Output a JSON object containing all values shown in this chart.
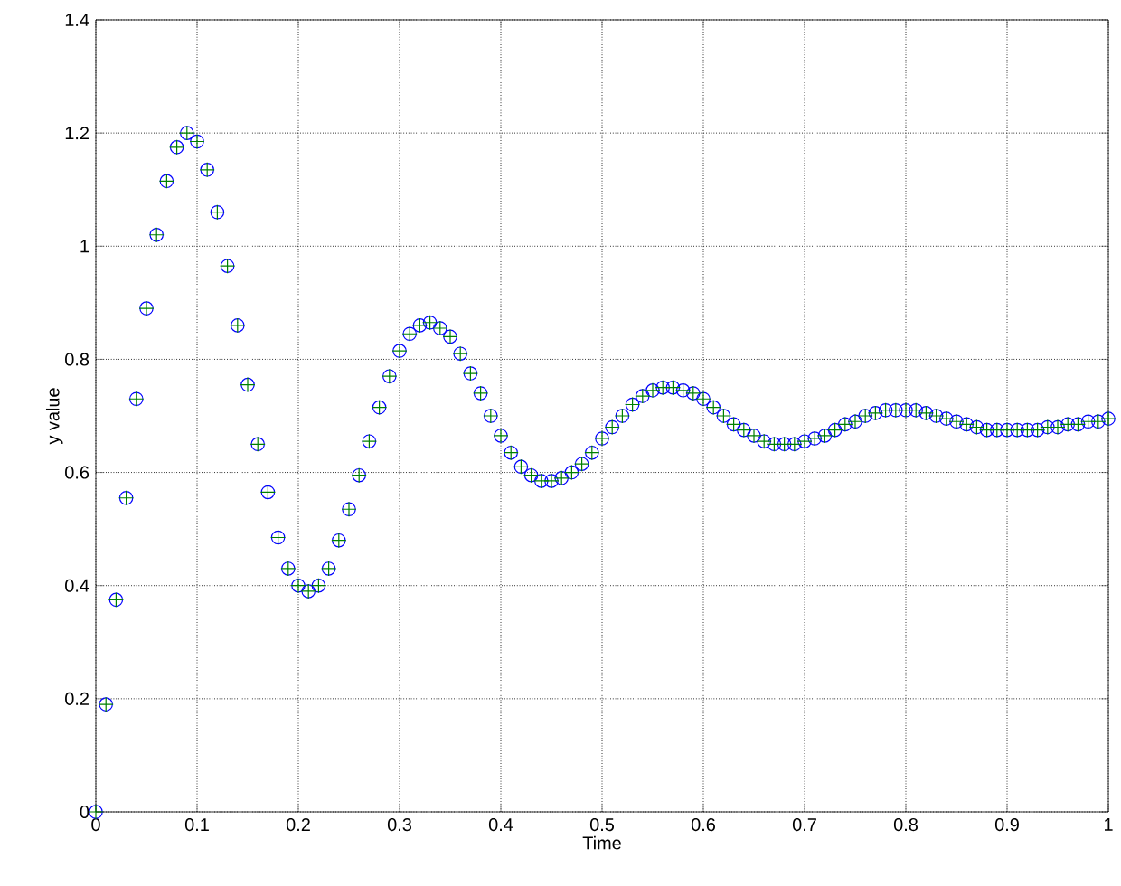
{
  "chart_data": {
    "type": "scatter",
    "xlabel": "Time",
    "ylabel": "y value",
    "x": [
      0,
      0.01,
      0.02,
      0.03,
      0.04,
      0.05,
      0.06,
      0.07,
      0.08,
      0.09,
      0.1,
      0.11,
      0.12,
      0.13,
      0.14,
      0.15,
      0.16,
      0.17,
      0.18,
      0.19,
      0.2,
      0.21,
      0.22,
      0.23,
      0.24,
      0.25,
      0.26,
      0.27,
      0.28,
      0.29,
      0.3,
      0.31,
      0.32,
      0.33,
      0.34,
      0.35,
      0.36,
      0.37,
      0.38,
      0.39,
      0.4,
      0.41,
      0.42,
      0.43,
      0.44,
      0.45,
      0.46,
      0.47,
      0.48,
      0.49,
      0.5,
      0.51,
      0.52,
      0.53,
      0.54,
      0.55,
      0.56,
      0.57,
      0.58,
      0.59,
      0.6,
      0.61,
      0.62,
      0.63,
      0.64,
      0.65,
      0.66,
      0.67,
      0.68,
      0.69,
      0.7,
      0.71,
      0.72,
      0.73,
      0.74,
      0.75,
      0.76,
      0.77,
      0.78,
      0.79,
      0.8,
      0.81,
      0.82,
      0.83,
      0.84,
      0.85,
      0.86,
      0.87,
      0.88,
      0.89,
      0.9,
      0.91,
      0.92,
      0.93,
      0.94,
      0.95,
      0.96,
      0.97,
      0.98,
      0.99,
      1.0
    ],
    "series": [
      {
        "color": "#0000ff",
        "marker": "circle",
        "values": [
          0,
          0.19,
          0.375,
          0.555,
          0.73,
          0.89,
          1.02,
          1.115,
          1.175,
          1.2,
          1.185,
          1.135,
          1.06,
          0.965,
          0.86,
          0.755,
          0.65,
          0.565,
          0.485,
          0.43,
          0.4,
          0.39,
          0.4,
          0.43,
          0.48,
          0.535,
          0.595,
          0.655,
          0.715,
          0.77,
          0.815,
          0.845,
          0.86,
          0.865,
          0.855,
          0.84,
          0.81,
          0.775,
          0.74,
          0.7,
          0.665,
          0.635,
          0.61,
          0.595,
          0.585,
          0.585,
          0.59,
          0.6,
          0.615,
          0.635,
          0.66,
          0.68,
          0.7,
          0.72,
          0.735,
          0.745,
          0.75,
          0.75,
          0.745,
          0.74,
          0.73,
          0.715,
          0.7,
          0.685,
          0.675,
          0.665,
          0.655,
          0.65,
          0.65,
          0.65,
          0.655,
          0.66,
          0.665,
          0.675,
          0.685,
          0.69,
          0.7,
          0.705,
          0.71,
          0.71,
          0.71,
          0.71,
          0.705,
          0.7,
          0.695,
          0.69,
          0.685,
          0.68,
          0.675,
          0.675,
          0.675,
          0.675,
          0.675,
          0.675,
          0.68,
          0.68,
          0.685,
          0.685,
          0.69,
          0.69,
          0.695
        ]
      },
      {
        "color": "#008000",
        "marker": "cross",
        "values": [
          0,
          0.19,
          0.375,
          0.555,
          0.73,
          0.89,
          1.02,
          1.115,
          1.175,
          1.2,
          1.185,
          1.135,
          1.06,
          0.965,
          0.86,
          0.755,
          0.65,
          0.565,
          0.485,
          0.43,
          0.4,
          0.39,
          0.4,
          0.43,
          0.48,
          0.535,
          0.595,
          0.655,
          0.715,
          0.77,
          0.815,
          0.845,
          0.86,
          0.865,
          0.855,
          0.84,
          0.81,
          0.775,
          0.74,
          0.7,
          0.665,
          0.635,
          0.61,
          0.595,
          0.585,
          0.585,
          0.59,
          0.6,
          0.615,
          0.635,
          0.66,
          0.68,
          0.7,
          0.72,
          0.735,
          0.745,
          0.75,
          0.75,
          0.745,
          0.74,
          0.73,
          0.715,
          0.7,
          0.685,
          0.675,
          0.665,
          0.655,
          0.65,
          0.65,
          0.65,
          0.655,
          0.66,
          0.665,
          0.675,
          0.685,
          0.69,
          0.7,
          0.705,
          0.71,
          0.71,
          0.71,
          0.71,
          0.705,
          0.7,
          0.695,
          0.69,
          0.685,
          0.68,
          0.675,
          0.675,
          0.675,
          0.675,
          0.675,
          0.675,
          0.68,
          0.68,
          0.685,
          0.685,
          0.69,
          0.69,
          0.695
        ]
      }
    ],
    "xlim": [
      0,
      1
    ],
    "ylim": [
      0,
      1.4
    ],
    "xticks": [
      0,
      0.1,
      0.2,
      0.3,
      0.4,
      0.5,
      0.6,
      0.7,
      0.8,
      0.9,
      1
    ],
    "yticks": [
      0,
      0.2,
      0.4,
      0.6,
      0.8,
      1,
      1.2,
      1.4
    ],
    "grid": true,
    "line_style": "dotted"
  }
}
